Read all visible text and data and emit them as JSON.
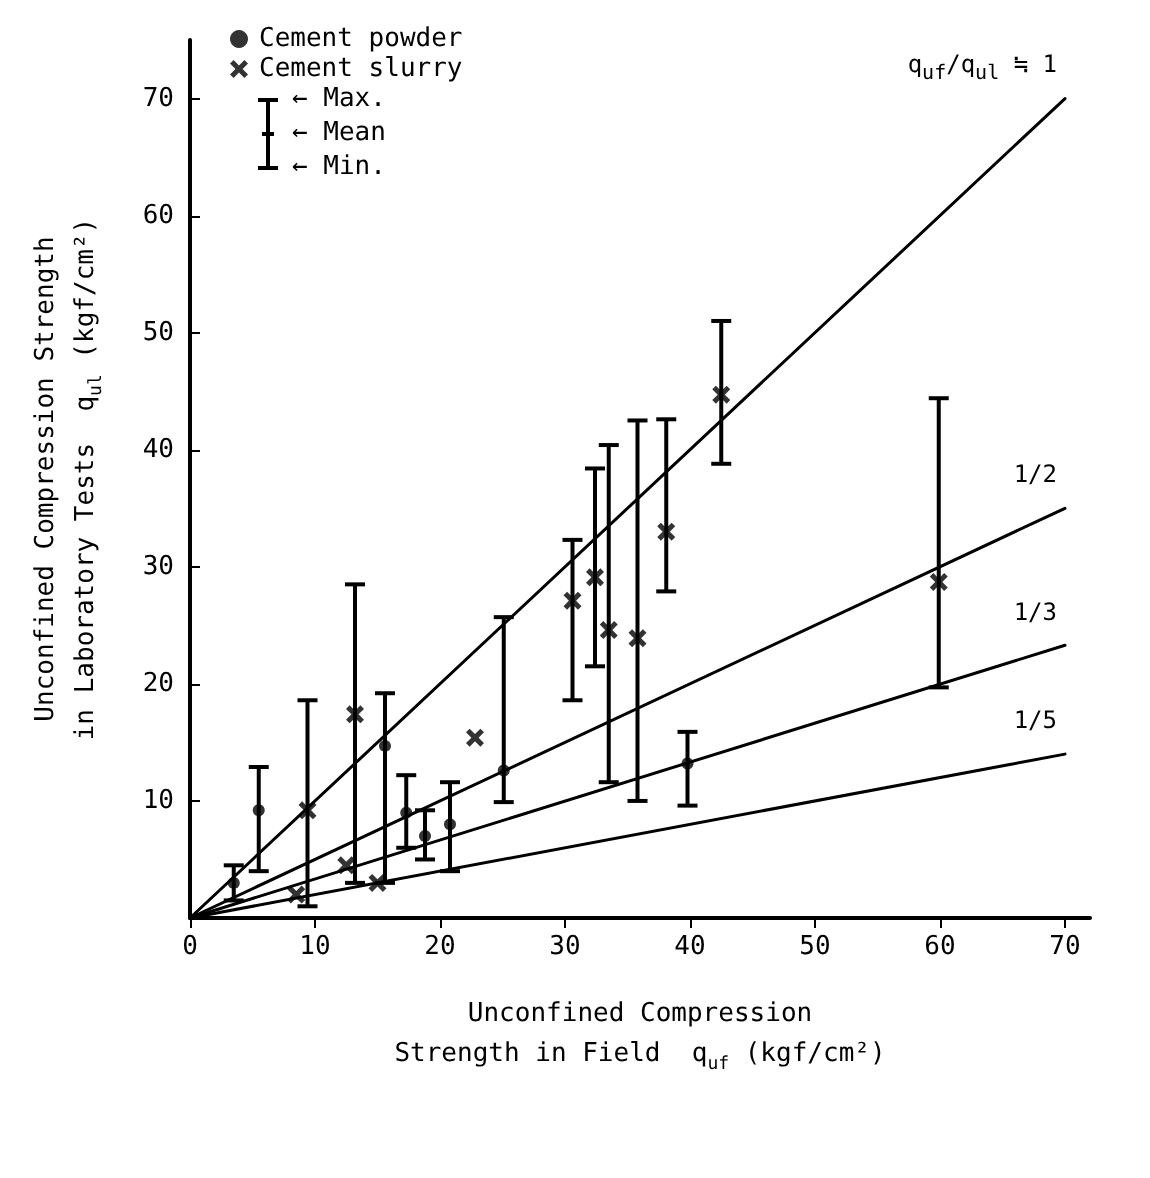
{
  "chart_data": {
    "type": "scatter",
    "xlabel": "Unconfined Compression\nStrength in Field  q$_{uf}$ (kgf/cm²)",
    "ylabel": "Unconfined Compression Strength\nin Laboratory Tests  q$_{ul}$ (kgf/cm²)",
    "xlim": [
      0,
      72
    ],
    "xticks": [
      0,
      10,
      20,
      30,
      40,
      50,
      60,
      70
    ],
    "ylim": [
      0,
      75
    ],
    "yticks": [
      {
        "value": 0,
        "label": null
      },
      10,
      20,
      30,
      40,
      50,
      60,
      70
    ],
    "grid": false,
    "legend": "top left",
    "series": [
      {
        "name": "Cement powder",
        "color": "#000000",
        "marker": "circle",
        "x": [
          5.5,
          15.6,
          17.3,
          18.8,
          20.8,
          25.1,
          39.8,
          3.5
        ],
        "values": [
          9.2,
          14.7,
          9,
          7,
          8,
          12.6,
          13.2,
          3
        ],
        "errors": [
          [
            4,
            12.9
          ],
          [
            3,
            19.2
          ],
          [
            6,
            12.2
          ],
          [
            5,
            9.2
          ],
          [
            4,
            11.6
          ],
          [
            9.9,
            25.7
          ],
          [
            9.6,
            15.9
          ],
          [
            1.5,
            4.5
          ]
        ]
      },
      {
        "name": "Cement slurry",
        "color": "#000000",
        "marker": "cross",
        "x": [
          9.4,
          13.2,
          22.8,
          30.6,
          32.4,
          33.5,
          35.8,
          38.1,
          42.5,
          59.9,
          12.5,
          15,
          8.5
        ],
        "values": [
          9.2,
          17.4,
          15.4,
          27.1,
          29.1,
          24.6,
          23.9,
          33,
          44.7,
          28.7,
          4.5,
          3,
          2
        ],
        "errors": [
          [
            1,
            18.6
          ],
          [
            3,
            28.5
          ],
          null,
          [
            18.6,
            32.3
          ],
          [
            21.5,
            38.4
          ],
          [
            11.6,
            40.4
          ],
          [
            10,
            42.5
          ],
          [
            27.9,
            42.6
          ],
          [
            38.8,
            51
          ],
          [
            19.7,
            44.4
          ],
          null,
          null,
          null
        ]
      },
      {
        "type": "line",
        "name": "q$_{uf}$/q$_{ul}$ ≒ 1",
        "color": "#000000",
        "marker": "none",
        "x": [
          0,
          70
        ],
        "values": [
          0,
          70
        ]
      },
      {
        "type": "line",
        "name": "1/2",
        "color": "#000000",
        "marker": "none",
        "x": [
          0,
          70
        ],
        "values": [
          0,
          35
        ]
      },
      {
        "type": "line",
        "name": "1/3",
        "color": "#000000",
        "marker": "none",
        "x": [
          0,
          70
        ],
        "values": [
          0,
          23.3
        ]
      },
      {
        "type": "line",
        "name": "1/5",
        "color": "#000000",
        "marker": "none",
        "x": [
          0,
          70
        ],
        "values": [
          0,
          14
        ]
      }
    ],
    "annotations": [
      "← Max.",
      "← Mean",
      "← Min."
    ]
  }
}
